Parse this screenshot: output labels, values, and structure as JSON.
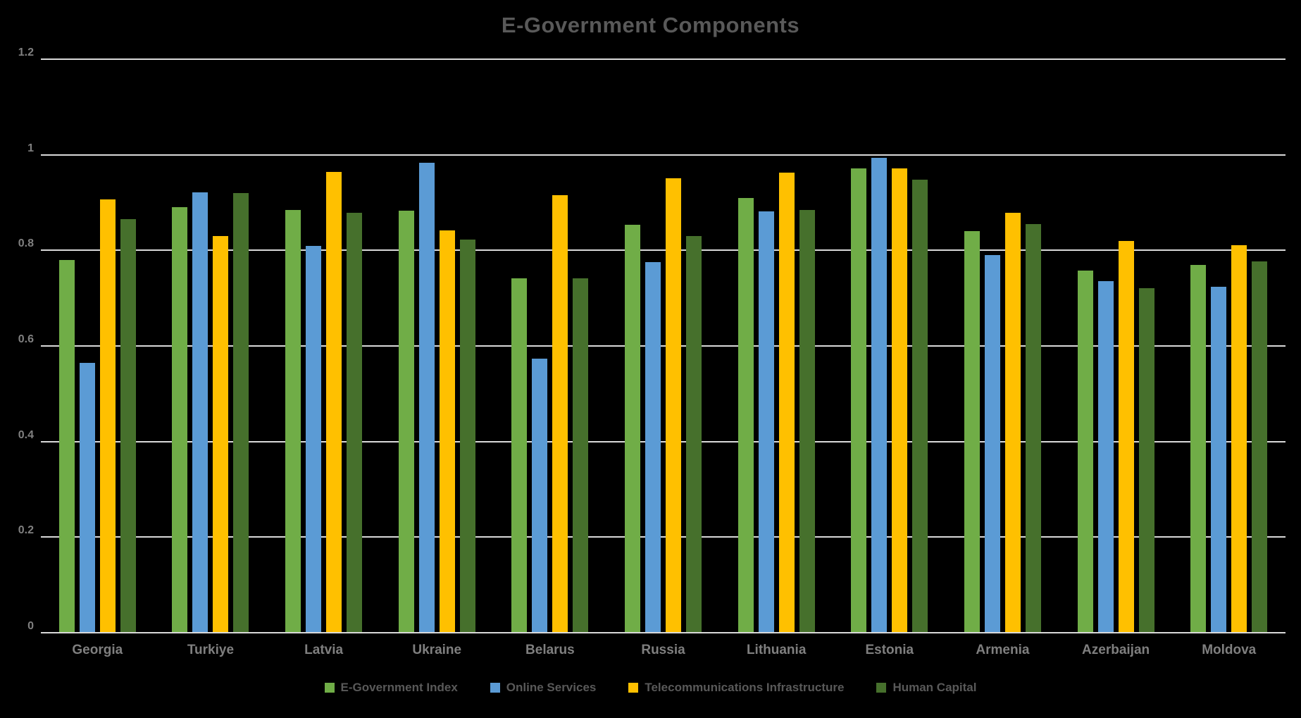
{
  "chart_data": {
    "type": "bar",
    "title": "E-Government Components",
    "xlabel": "",
    "ylabel": "",
    "ylim": [
      0,
      1.2
    ],
    "grid": true,
    "legend_position": "bottom",
    "background_color": "#000000",
    "gridline_color": "#d9d9d9",
    "title_color": "#595959",
    "tick_label_color": "#808080",
    "category_label_color": "#7f7f7f",
    "y_ticks": [
      {
        "value": 0,
        "label": "0"
      },
      {
        "value": 0.2,
        "label": "0.2"
      },
      {
        "value": 0.4,
        "label": "0.4"
      },
      {
        "value": 0.6,
        "label": "0.6"
      },
      {
        "value": 0.8,
        "label": "0.8"
      },
      {
        "value": 1,
        "label": "1"
      },
      {
        "value": 1.2,
        "label": "1.2"
      }
    ],
    "categories": [
      "Georgia",
      "Turkiye",
      "Latvia",
      "Ukraine",
      "Belarus",
      "Russia",
      "Lithuania",
      "Estonia",
      "Armenia",
      "Azerbaijan",
      "Moldova"
    ],
    "series": [
      {
        "name": "E-Government Index",
        "color": "#70AD47",
        "values": [
          0.78,
          0.891,
          0.884,
          0.883,
          0.742,
          0.853,
          0.909,
          0.972,
          0.841,
          0.758,
          0.77
        ]
      },
      {
        "name": "Online Services",
        "color": "#5B9BD5",
        "values": [
          0.565,
          0.921,
          0.81,
          0.984,
          0.574,
          0.776,
          0.882,
          0.994,
          0.79,
          0.736,
          0.724
        ]
      },
      {
        "name": "Telecommunications Infrastructure",
        "color": "#FFC000",
        "values": [
          0.906,
          0.83,
          0.964,
          0.842,
          0.915,
          0.951,
          0.963,
          0.972,
          0.878,
          0.819,
          0.811
        ]
      },
      {
        "name": "Human Capital",
        "color": "#46702C",
        "values": [
          0.865,
          0.92,
          0.879,
          0.823,
          0.741,
          0.83,
          0.885,
          0.948,
          0.855,
          0.721,
          0.777
        ]
      }
    ]
  }
}
